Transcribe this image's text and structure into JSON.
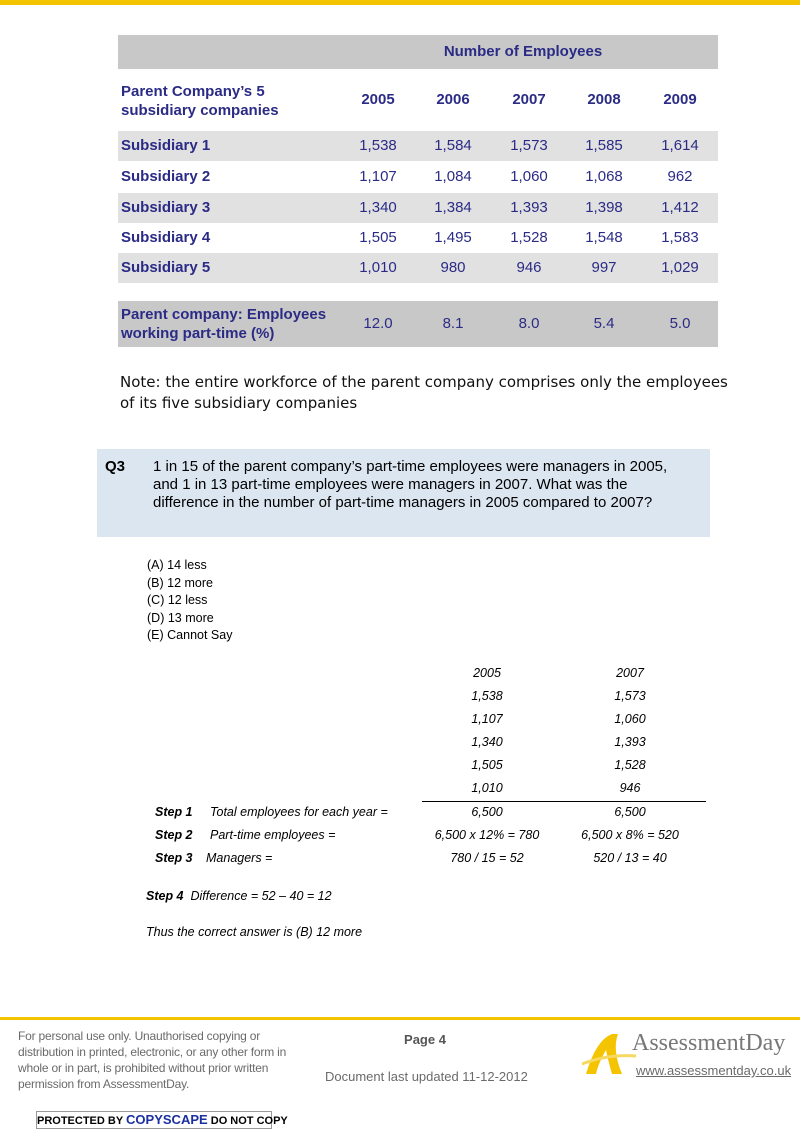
{
  "table": {
    "group_header": "Number of Employees",
    "row_header": "Parent Company’s 5 subsidiary companies",
    "years": [
      "2005",
      "2006",
      "2007",
      "2008",
      "2009"
    ],
    "rows": [
      {
        "label": "Subsidiary 1",
        "values": [
          "1,538",
          "1,584",
          "1,573",
          "1,585",
          "1,614"
        ]
      },
      {
        "label": "Subsidiary 2",
        "values": [
          "1,107",
          "1,084",
          "1,060",
          "1,068",
          "962"
        ]
      },
      {
        "label": "Subsidiary 3",
        "values": [
          "1,340",
          "1,384",
          "1,393",
          "1,398",
          "1,412"
        ]
      },
      {
        "label": "Subsidiary 4",
        "values": [
          "1,505",
          "1,495",
          "1,528",
          "1,548",
          "1,583"
        ]
      },
      {
        "label": "Subsidiary 5",
        "values": [
          "1,010",
          "980",
          "946",
          "997",
          "1,029"
        ]
      }
    ],
    "parttime": {
      "label": "Parent company: Employees working part-time (%)",
      "values": [
        "12.0",
        "8.1",
        "8.0",
        "5.4",
        "5.0"
      ]
    }
  },
  "note": "Note: the entire workforce of the parent company comprises only the employees of its five subsidiary companies",
  "question": {
    "number": "Q3",
    "text": "1 in 15 of the parent company’s part-time employees were managers in 2005, and 1 in 13 part-time employees were managers in 2007. What was the difference in the number of part-time managers in 2005 compared to 2007?",
    "options": [
      "(A) 14 less",
      "(B) 12 more",
      "(C) 12 less",
      "(D) 13 more",
      "(E) Cannot Say"
    ]
  },
  "working": {
    "headers": [
      "2005",
      "2007"
    ],
    "values": [
      [
        "1,538",
        "1,573"
      ],
      [
        "1,107",
        "1,060"
      ],
      [
        "1,340",
        "1,393"
      ],
      [
        "1,505",
        "1,528"
      ],
      [
        "1,010",
        "946"
      ]
    ],
    "steps": [
      {
        "step": "Step 1",
        "label": "Total employees for each year  =",
        "a": "6,500",
        "b": "6,500"
      },
      {
        "step": "Step 2",
        "label": "Part-time employees =",
        "a": "6,500 x 12% =  780",
        "b": "6,500 x 8% = 520"
      },
      {
        "step": "Step 3",
        "label": "Managers =",
        "a": "780 / 15 = 52",
        "b": "520 / 13 = 40"
      }
    ],
    "step4": "Step 4",
    "step4_text": "Difference = 52 – 40 = 12",
    "conclusion": "Thus the correct answer is (B) 12 more"
  },
  "footer": {
    "disclaimer": "For personal use only. Unauthorised copying or distribution in printed, electronic, or any other form in whole or in part, is prohibited without prior written permission from AssessmentDay.",
    "copyscape_a": "PROTECTED BY",
    "copyscape_b": "COPYSCAPE",
    "copyscape_c": "DO NOT COPY",
    "page": "Page 4",
    "updated": "Document last updated 11-12-2012",
    "brand": "AssessmentDay",
    "url": "www.assessmentday.co.uk"
  },
  "colors": {
    "accent": "#f5c400",
    "table_text": "#2b2b86",
    "question_bg": "#dce6f1"
  }
}
